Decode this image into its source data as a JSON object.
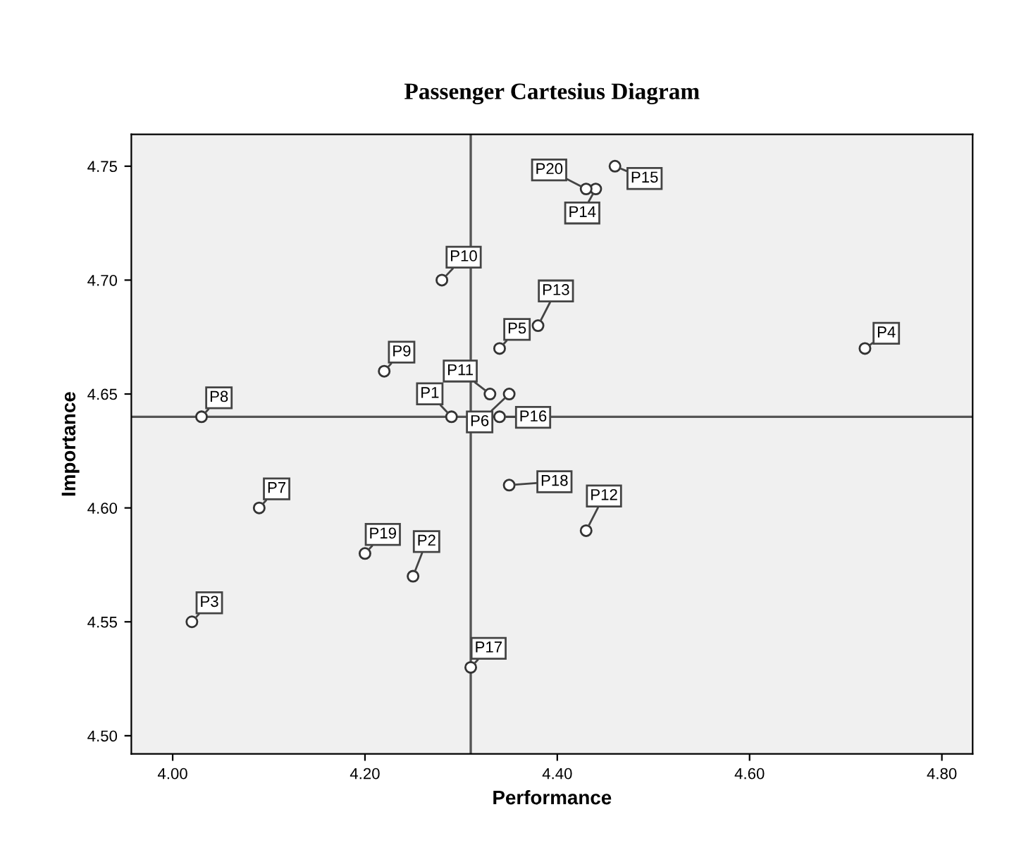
{
  "chart_data": {
    "type": "scatter",
    "title": "Passenger Cartesius Diagram",
    "xlabel": "Performance",
    "ylabel": "Importance",
    "x": [
      4.29,
      4.25,
      4.02,
      4.72,
      4.34,
      4.35,
      4.09,
      4.03,
      4.22,
      4.28,
      4.33,
      4.43,
      4.38,
      4.44,
      4.46,
      4.34,
      4.31,
      4.35,
      4.2,
      4.43
    ],
    "series": [
      {
        "color": "#333333",
        "values": [
          4.64,
          4.57,
          4.55,
          4.67,
          4.67,
          4.65,
          4.6,
          4.64,
          4.66,
          4.7,
          4.65,
          4.59,
          4.68,
          4.74,
          4.75,
          4.64,
          4.53,
          4.61,
          4.58,
          4.74
        ]
      }
    ],
    "annotations": [
      {
        "text": "P1",
        "x": 4.29,
        "y": 4.64
      },
      {
        "text": "P2",
        "x": 4.25,
        "y": 4.57
      },
      {
        "text": "P3",
        "x": 4.02,
        "y": 4.55
      },
      {
        "text": "P4",
        "x": 4.72,
        "y": 4.67
      },
      {
        "text": "P5",
        "x": 4.34,
        "y": 4.67
      },
      {
        "text": "P6",
        "x": 4.35,
        "y": 4.65
      },
      {
        "text": "P7",
        "x": 4.09,
        "y": 4.6
      },
      {
        "text": "P8",
        "x": 4.03,
        "y": 4.64
      },
      {
        "text": "P9",
        "x": 4.22,
        "y": 4.66
      },
      {
        "text": "P10",
        "x": 4.28,
        "y": 4.7
      },
      {
        "text": "P11",
        "x": 4.33,
        "y": 4.65
      },
      {
        "text": "P12",
        "x": 4.43,
        "y": 4.59
      },
      {
        "text": "P13",
        "x": 4.38,
        "y": 4.68
      },
      {
        "text": "P14",
        "x": 4.44,
        "y": 4.74
      },
      {
        "text": "P15",
        "x": 4.46,
        "y": 4.75
      },
      {
        "text": "P16",
        "x": 4.34,
        "y": 4.64
      },
      {
        "text": "P17",
        "x": 4.31,
        "y": 4.53
      },
      {
        "text": "P18",
        "x": 4.35,
        "y": 4.61
      },
      {
        "text": "P19",
        "x": 4.2,
        "y": 4.58
      },
      {
        "text": "P20",
        "x": 4.43,
        "y": 4.74
      }
    ],
    "xlim": [
      3.957,
      4.832
    ],
    "ylim": [
      4.492,
      4.764
    ],
    "xticks": [
      {
        "value": 4.0,
        "label": "4.00"
      },
      {
        "value": 4.2,
        "label": "4.20"
      },
      {
        "value": 4.4,
        "label": "4.40"
      },
      {
        "value": 4.6,
        "label": "4.60"
      },
      {
        "value": 4.8,
        "label": "4.80"
      }
    ],
    "yticks": [
      {
        "value": 4.5,
        "label": "4.50"
      },
      {
        "value": 4.55,
        "label": "4.55"
      },
      {
        "value": 4.6,
        "label": "4.60"
      },
      {
        "value": 4.65,
        "label": "4.65"
      },
      {
        "value": 4.7,
        "label": "4.70"
      },
      {
        "value": 4.75,
        "label": "4.75"
      }
    ],
    "ref_lines": [
      {
        "axis": "x",
        "value": 4.31,
        "color": "#555555"
      },
      {
        "axis": "y",
        "value": 4.64,
        "color": "#555555"
      }
    ],
    "marker": "circle",
    "grid": false,
    "legend": false
  }
}
